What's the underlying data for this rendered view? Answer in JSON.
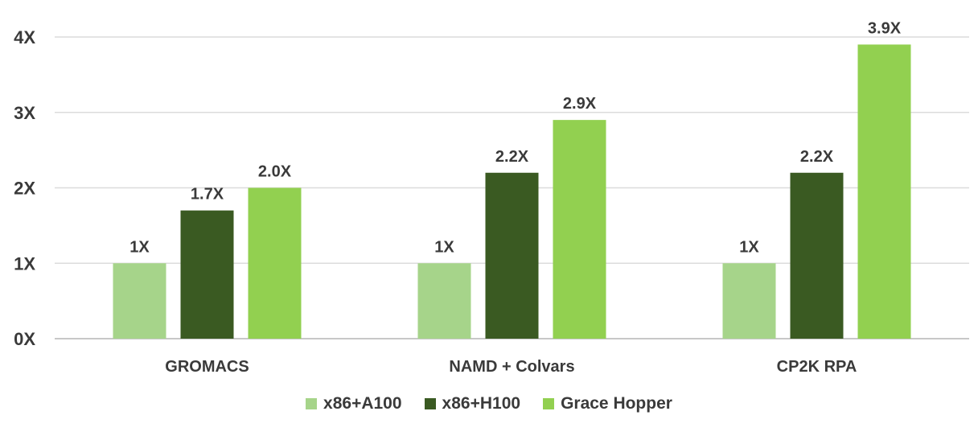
{
  "chart_data": {
    "type": "bar",
    "categories": [
      "GROMACS",
      "NAMD + Colvars",
      "CP2K RPA"
    ],
    "series": [
      {
        "name": "x86+A100",
        "values": [
          1.0,
          1.0,
          1.0
        ],
        "labels": [
          "1X",
          "1X",
          "1X"
        ],
        "color": "#a6d48a"
      },
      {
        "name": "x86+H100",
        "values": [
          1.7,
          2.2,
          2.2
        ],
        "labels": [
          "1.7X",
          "2.2X",
          "2.2X"
        ],
        "color": "#3a5a22"
      },
      {
        "name": "Grace Hopper",
        "values": [
          2.0,
          2.9,
          3.9
        ],
        "labels": [
          "2.0X",
          "2.9X",
          "3.9X"
        ],
        "color": "#92d050"
      }
    ],
    "yticks": [
      0,
      1,
      2,
      3,
      4
    ],
    "ytick_labels": [
      "0X",
      "1X",
      "2X",
      "3X",
      "4X"
    ],
    "ylim": [
      0,
      4
    ],
    "grid": true,
    "legend_position": "bottom"
  }
}
